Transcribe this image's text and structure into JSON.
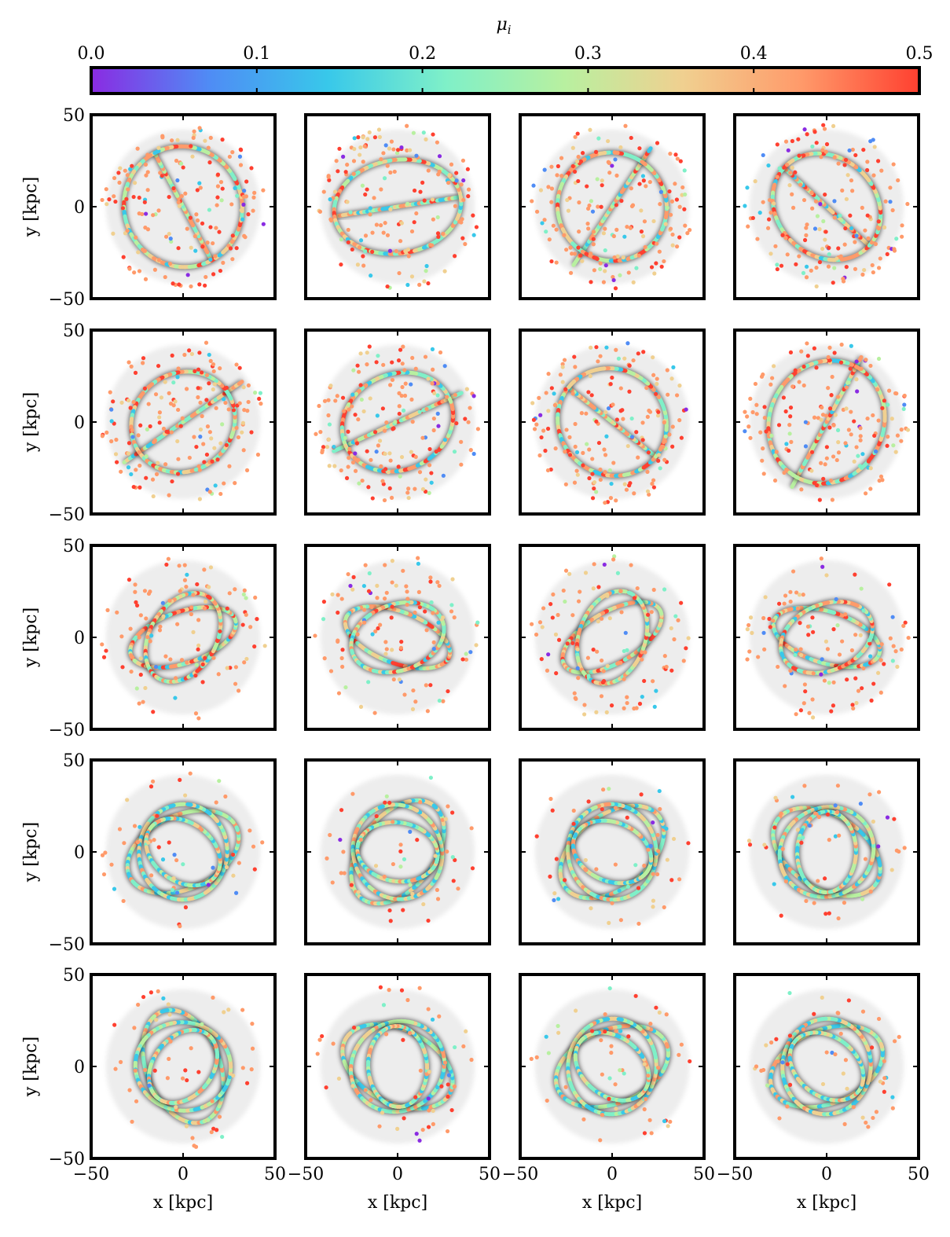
{
  "colorbar": {
    "label": "μ",
    "label_sub": "i",
    "range": [
      0.0,
      0.5
    ],
    "ticks": [
      "0.0",
      "0.1",
      "0.2",
      "0.3",
      "0.4",
      "0.5"
    ],
    "colors": [
      "#8a2be2",
      "#4f8cf5",
      "#38c8ea",
      "#7ff0c8",
      "#b8f0a0",
      "#f0d090",
      "#ff9a6a",
      "#ff4030"
    ]
  },
  "chart_data": {
    "type": "scatter",
    "layout": {
      "rows": 5,
      "cols": 4
    },
    "xlabel": "x [kpc]",
    "ylabel": "y [kpc]",
    "xlim": [
      -50,
      50
    ],
    "ylim": [
      -50,
      50
    ],
    "xticks": [
      "−50",
      "0",
      "50"
    ],
    "yticks": [
      "50",
      "0",
      "−50"
    ],
    "color_variable": "μi",
    "color_range": [
      0.0,
      0.5
    ]
  }
}
